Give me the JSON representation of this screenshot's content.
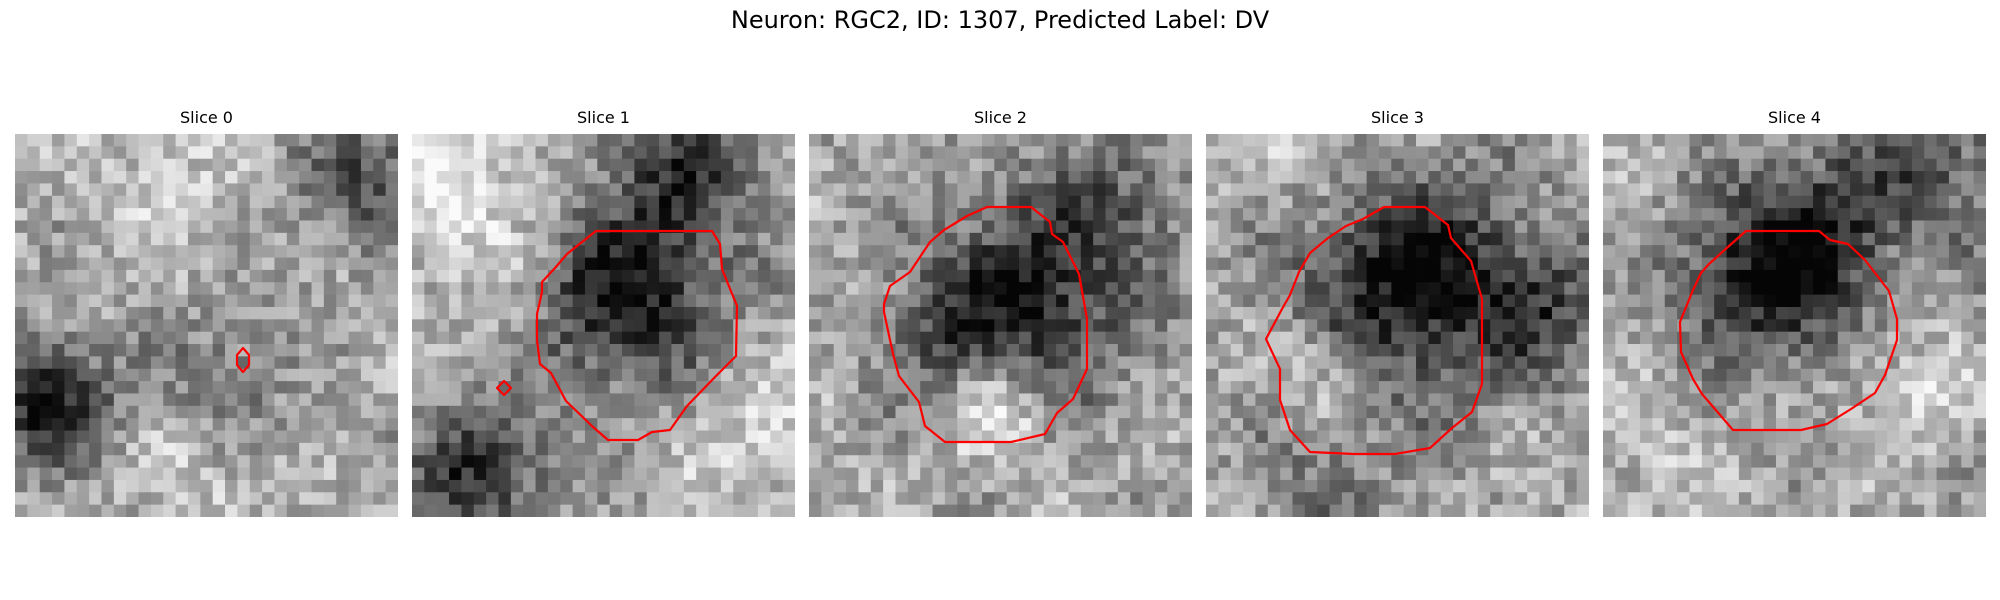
{
  "figure": {
    "title": "Neuron: RGC2, ID: 1307, Predicted Label: DV"
  },
  "panels": [
    {
      "title": "Slice 0"
    },
    {
      "title": "Slice 1"
    },
    {
      "title": "Slice 2"
    },
    {
      "title": "Slice 3"
    },
    {
      "title": "Slice 4"
    }
  ],
  "contour_color": "#ff0000"
}
